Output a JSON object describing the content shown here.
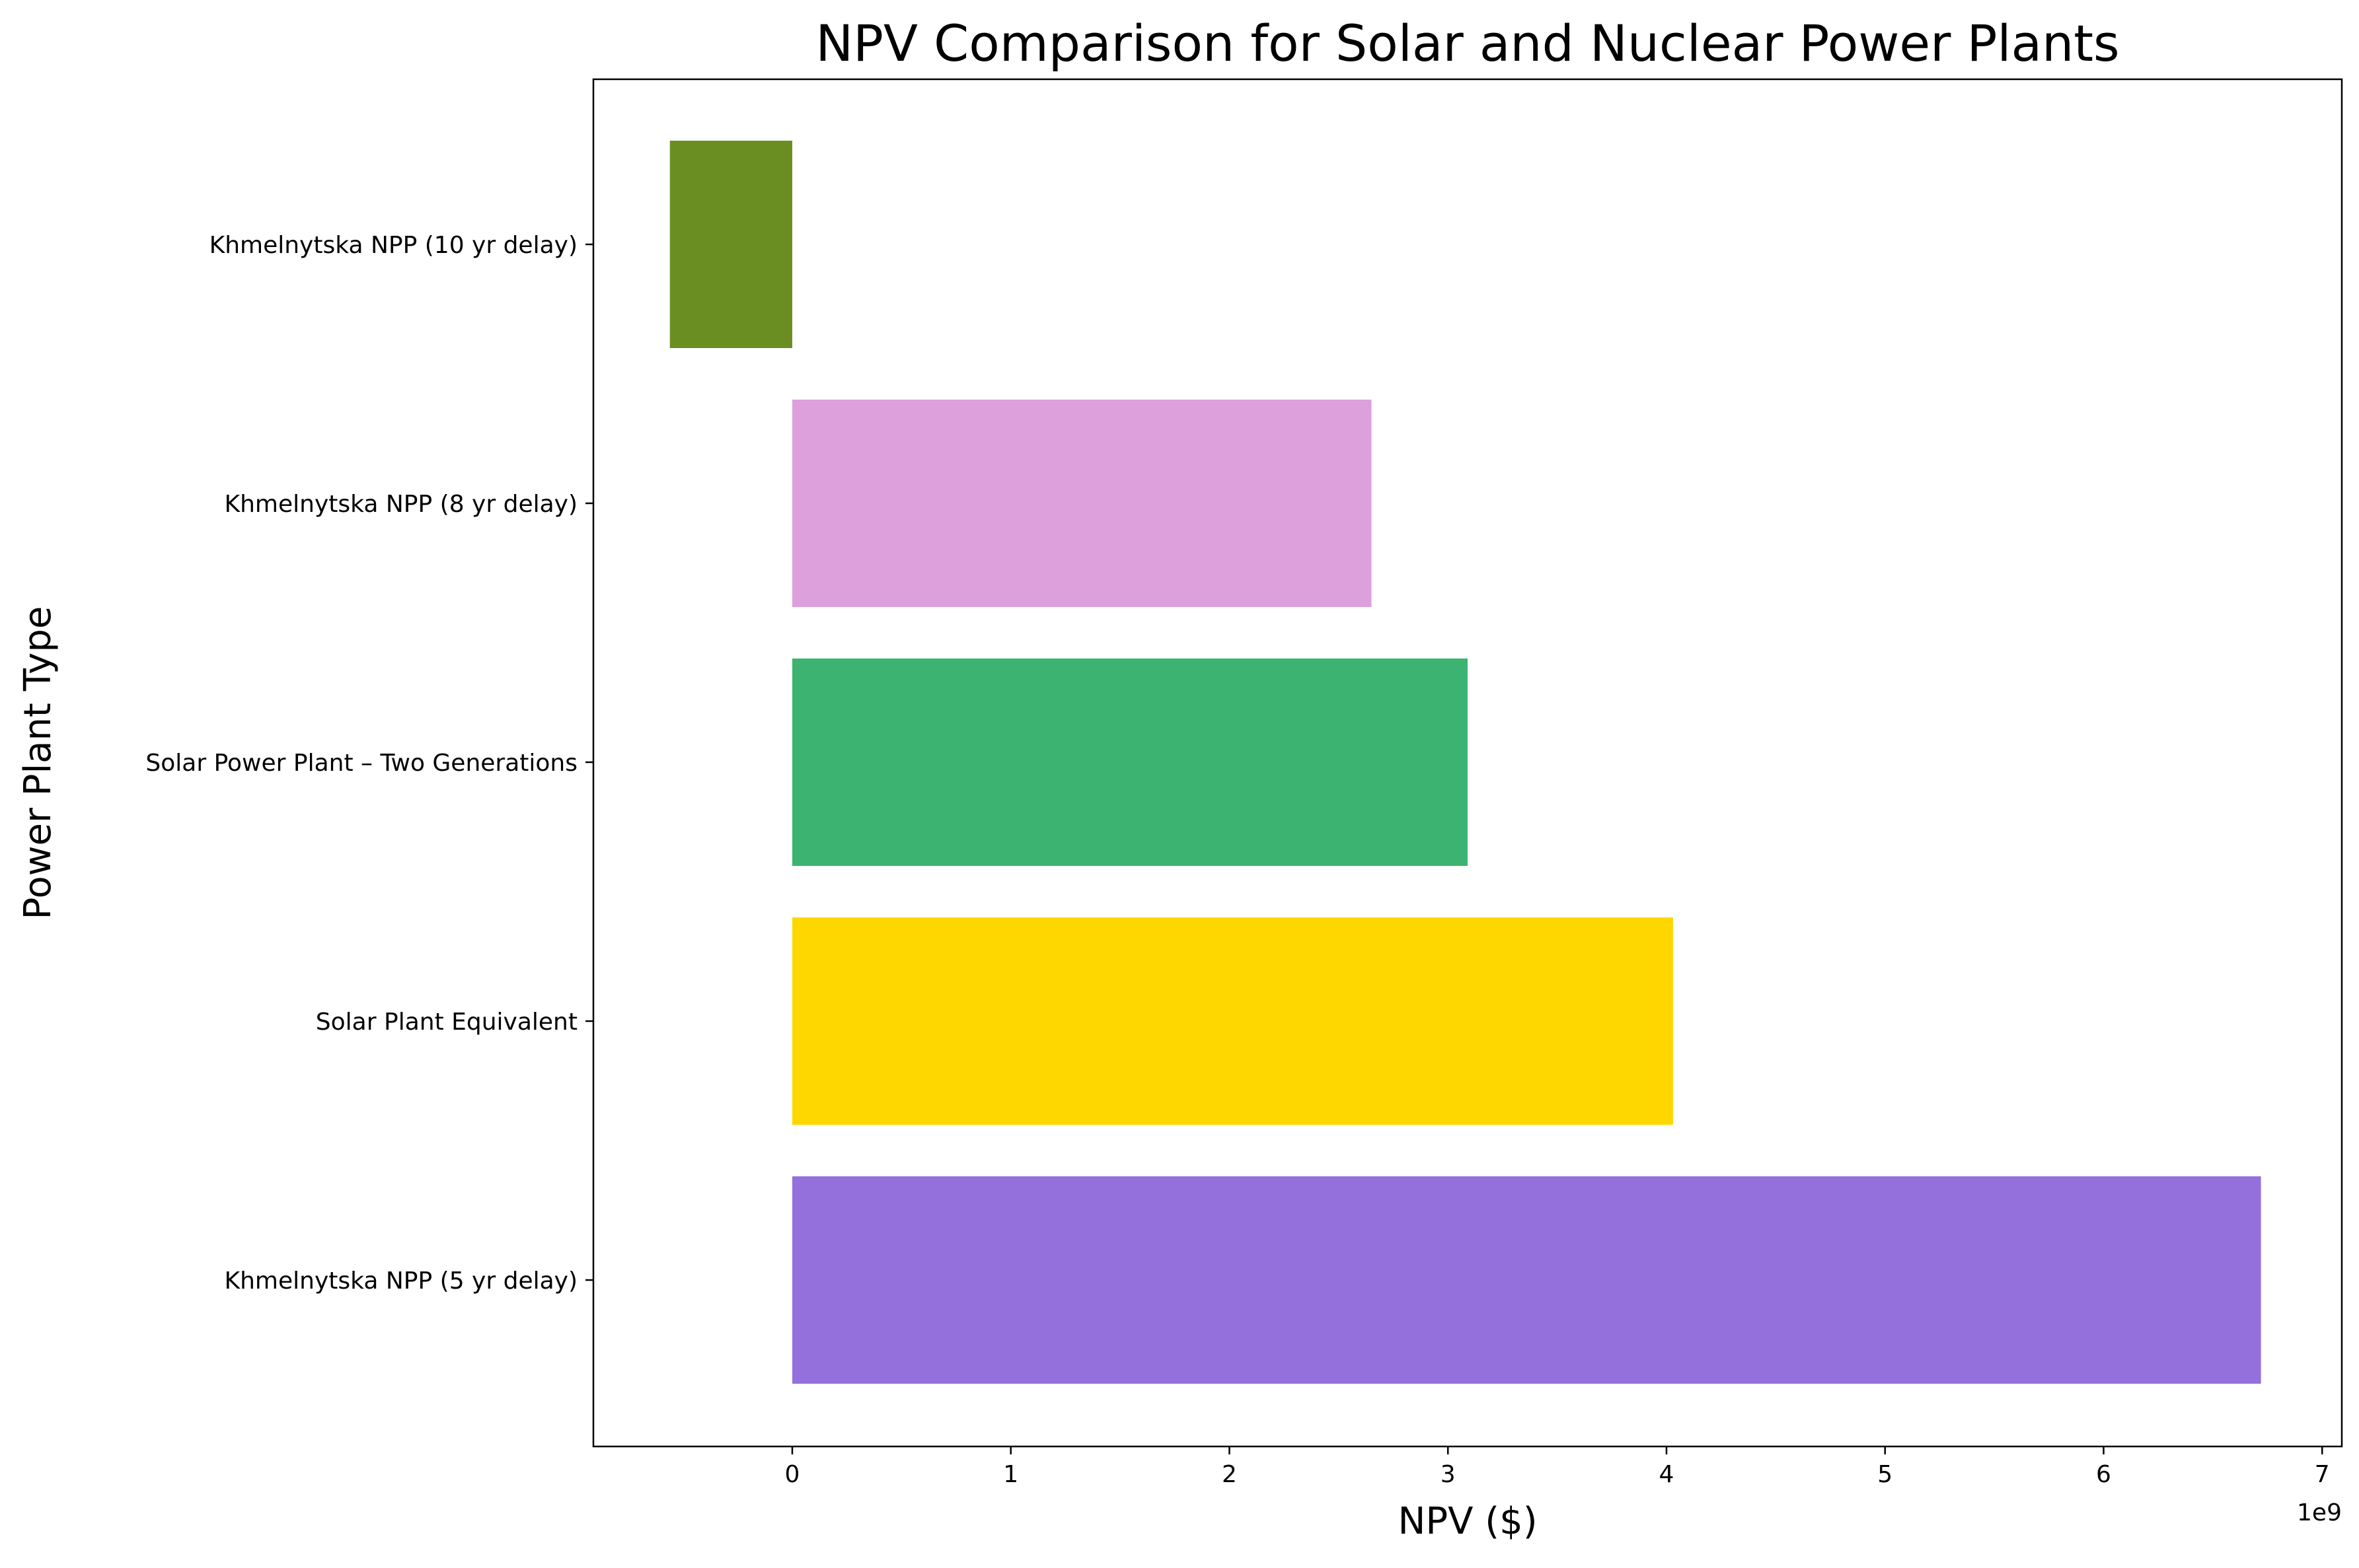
{
  "chart_data": {
    "type": "bar",
    "orientation": "horizontal",
    "title": "NPV Comparison for Solar and Nuclear Power Plants",
    "xlabel": "NPV ($)",
    "ylabel": "Power Plant Type",
    "x_offset_label": "1e9",
    "x_scale_multiplier": 1000000000,
    "xlim": [
      -910000000,
      7090000000
    ],
    "xticks": [
      0,
      1,
      2,
      3,
      4,
      5,
      6,
      7
    ],
    "grid": false,
    "legend": "none",
    "categories": [
      "Khmelnytska NPP (10 yr delay)",
      "Khmelnytska NPP (8 yr delay)",
      "Solar Power Plant – Two Generations",
      "Solar Plant Equivalent",
      "Khmelnytska NPP (5 yr delay)"
    ],
    "values": [
      -560000000,
      2650000000,
      3090000000,
      4030000000,
      6720000000
    ],
    "colors": [
      "#6b8e23",
      "#dda0dd",
      "#3cb371",
      "#ffd700",
      "#9370db"
    ]
  }
}
